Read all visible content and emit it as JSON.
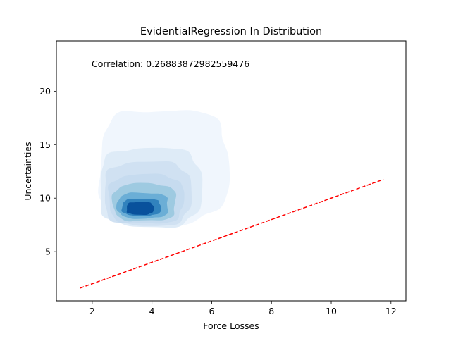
{
  "chart_data": {
    "type": "kde-density-scatter",
    "title": "EvidentialRegression In Distribution",
    "xlabel": "Force Losses",
    "ylabel": "Uncertainties",
    "annotation": "Correlation: 0.26883872982559476",
    "xlim": [
      0.8,
      12.5
    ],
    "ylim": [
      0.4,
      24.7
    ],
    "xticks": [
      2,
      4,
      6,
      8,
      10,
      12
    ],
    "yticks": [
      5,
      10,
      15,
      20
    ],
    "grid": false,
    "colormap": "Blues",
    "density_levels": [
      {
        "level": 1,
        "color": "#f0f6fd",
        "center": [
          4.4,
          13.0
        ],
        "half_width": [
          2.15,
          5.3
        ]
      },
      {
        "level": 2,
        "color": "#deebf7",
        "center": [
          3.95,
          11.0
        ],
        "half_width": [
          1.7,
          3.7
        ]
      },
      {
        "level": 3,
        "color": "#d0e1f2",
        "center": [
          3.85,
          10.4
        ],
        "half_width": [
          1.45,
          3.0
        ]
      },
      {
        "level": 4,
        "color": "#c6dbef",
        "center": [
          3.8,
          9.9
        ],
        "half_width": [
          1.25,
          2.3
        ]
      },
      {
        "level": 5,
        "color": "#9ecae1",
        "center": [
          3.75,
          9.6
        ],
        "half_width": [
          1.05,
          1.75
        ]
      },
      {
        "level": 6,
        "color": "#6baed6",
        "center": [
          3.7,
          9.3
        ],
        "half_width": [
          0.85,
          1.2
        ]
      },
      {
        "level": 7,
        "color": "#3182bd",
        "center": [
          3.65,
          9.15
        ],
        "half_width": [
          0.65,
          0.8
        ]
      },
      {
        "level": 8,
        "color": "#08519c",
        "center": [
          3.6,
          9.05
        ],
        "half_width": [
          0.45,
          0.6
        ]
      }
    ],
    "reference_line": {
      "x": [
        1.6,
        11.75
      ],
      "y": [
        1.6,
        11.75
      ],
      "color": "#ff0000",
      "style": "dashed"
    }
  }
}
